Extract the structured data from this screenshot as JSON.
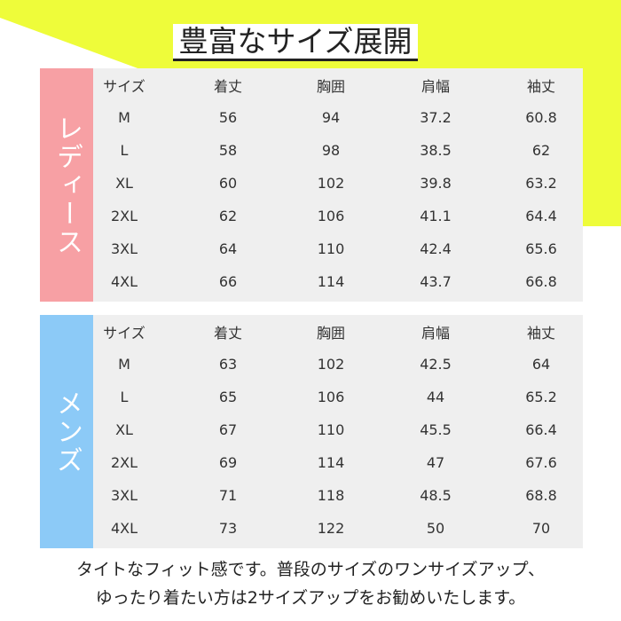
{
  "title": "豊富なサイズ展開",
  "tables": [
    {
      "label": "レディース",
      "header": [
        "サイズ",
        "着丈",
        "胸囲",
        "肩幅",
        "袖丈"
      ],
      "rows": [
        [
          "M",
          56,
          94,
          37.2,
          60.8
        ],
        [
          "L",
          58,
          98,
          38.5,
          62
        ],
        [
          "XL",
          60,
          102,
          39.8,
          63.2
        ],
        [
          "2XL",
          62,
          106,
          41.1,
          64.4
        ],
        [
          "3XL",
          64,
          110,
          42.4,
          65.6
        ],
        [
          "4XL",
          66,
          114,
          43.7,
          66.8
        ]
      ]
    },
    {
      "label": "メンズ",
      "header": [
        "サイズ",
        "着丈",
        "胸囲",
        "肩幅",
        "袖丈"
      ],
      "rows": [
        [
          "M",
          63,
          102,
          42.5,
          64
        ],
        [
          "L",
          65,
          106,
          44,
          65.2
        ],
        [
          "XL",
          67,
          110,
          45.5,
          66.4
        ],
        [
          "2XL",
          69,
          114,
          47,
          67.6
        ],
        [
          "3XL",
          71,
          118,
          48.5,
          68.8
        ],
        [
          "4XL",
          73,
          122,
          50,
          70
        ]
      ]
    }
  ],
  "footer": [
    "タイトなフィット感です。普段のサイズのワンサイズアップ、",
    "ゆったり着たい方は2サイズアップをお勧めいたします。"
  ]
}
